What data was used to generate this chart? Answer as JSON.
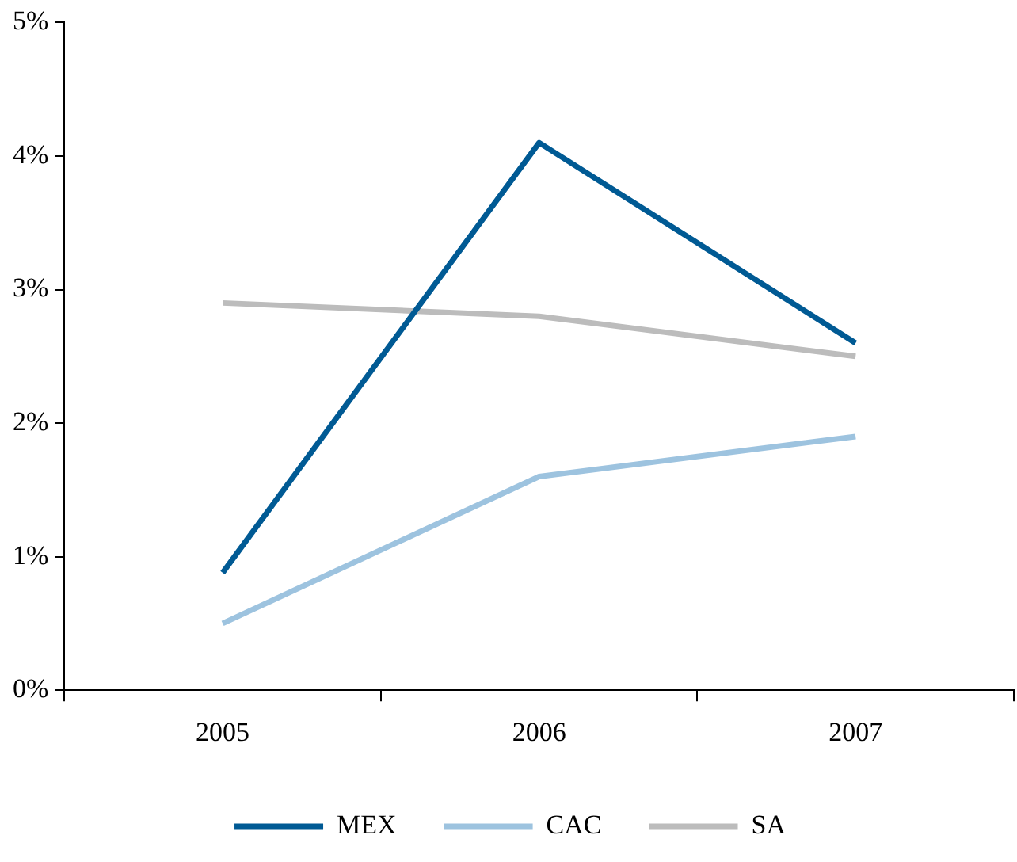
{
  "chart_data": {
    "type": "line",
    "categories": [
      "2005",
      "2006",
      "2007"
    ],
    "series": [
      {
        "name": "MEX",
        "color": "#005a94",
        "values": [
          0.88,
          4.1,
          2.6
        ]
      },
      {
        "name": "CAC",
        "color": "#9dc3df",
        "values": [
          0.5,
          1.6,
          1.9
        ]
      },
      {
        "name": "SA",
        "color": "#bcbcbc",
        "values": [
          2.9,
          2.8,
          2.5
        ]
      }
    ],
    "ylim": [
      0,
      5
    ],
    "yticks": [
      {
        "value": 0,
        "label": "0%"
      },
      {
        "value": 1,
        "label": "1%"
      },
      {
        "value": 2,
        "label": "2%"
      },
      {
        "value": 3,
        "label": "3%"
      },
      {
        "value": 4,
        "label": "4%"
      },
      {
        "value": 5,
        "label": "5%"
      }
    ],
    "grid": false,
    "legend": "bottom",
    "marker": "none",
    "line_style": "solid"
  }
}
